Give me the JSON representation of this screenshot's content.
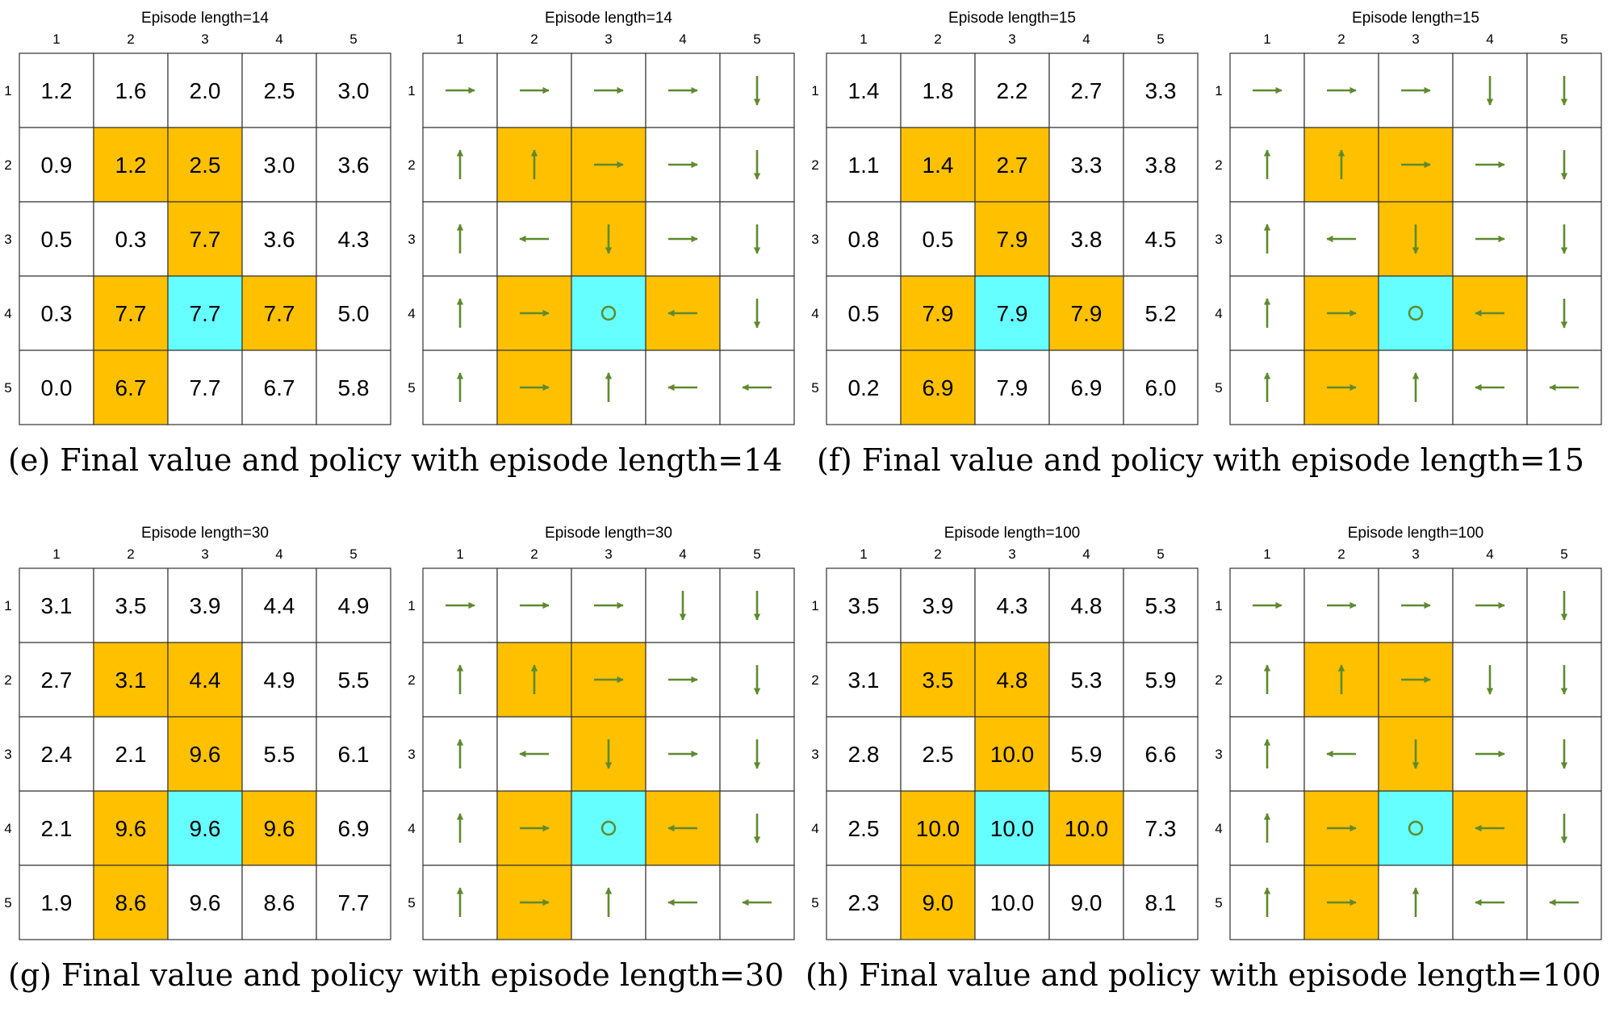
{
  "figures": [
    {
      "caption": "(e) Final value and policy with episode length=14",
      "value_grid": {
        "title": "Episode length=14",
        "col_labels": [
          "1",
          "2",
          "3",
          "4",
          "5"
        ],
        "row_labels": [
          "1",
          "2",
          "3",
          "4",
          "5"
        ],
        "values": [
          [
            "1.2",
            "1.6",
            "2.0",
            "2.5",
            "3.0"
          ],
          [
            "0.9",
            "1.2",
            "2.5",
            "3.0",
            "3.6"
          ],
          [
            "0.5",
            "0.3",
            "7.7",
            "3.6",
            "4.3"
          ],
          [
            "0.3",
            "7.7",
            "7.7",
            "7.7",
            "5.0"
          ],
          [
            "0.0",
            "6.7",
            "7.7",
            "6.7",
            "5.8"
          ]
        ]
      },
      "policy_grid": {
        "title": "Episode length=14",
        "col_labels": [
          "1",
          "2",
          "3",
          "4",
          "5"
        ],
        "row_labels": [
          "1",
          "2",
          "3",
          "4",
          "5"
        ],
        "actions": [
          [
            "right",
            "right",
            "right",
            "right",
            "down"
          ],
          [
            "up",
            "up",
            "right",
            "right",
            "down"
          ],
          [
            "up",
            "left",
            "down",
            "right",
            "down"
          ],
          [
            "up",
            "right",
            "stay",
            "left",
            "down"
          ],
          [
            "up",
            "right",
            "up",
            "left",
            "left"
          ]
        ]
      }
    },
    {
      "caption": "(f) Final value and policy with episode length=15",
      "value_grid": {
        "title": "Episode length=15",
        "col_labels": [
          "1",
          "2",
          "3",
          "4",
          "5"
        ],
        "row_labels": [
          "1",
          "2",
          "3",
          "4",
          "5"
        ],
        "values": [
          [
            "1.4",
            "1.8",
            "2.2",
            "2.7",
            "3.3"
          ],
          [
            "1.1",
            "1.4",
            "2.7",
            "3.3",
            "3.8"
          ],
          [
            "0.8",
            "0.5",
            "7.9",
            "3.8",
            "4.5"
          ],
          [
            "0.5",
            "7.9",
            "7.9",
            "7.9",
            "5.2"
          ],
          [
            "0.2",
            "6.9",
            "7.9",
            "6.9",
            "6.0"
          ]
        ]
      },
      "policy_grid": {
        "title": "Episode length=15",
        "col_labels": [
          "1",
          "2",
          "3",
          "4",
          "5"
        ],
        "row_labels": [
          "1",
          "2",
          "3",
          "4",
          "5"
        ],
        "actions": [
          [
            "right",
            "right",
            "right",
            "down",
            "down"
          ],
          [
            "up",
            "up",
            "right",
            "right",
            "down"
          ],
          [
            "up",
            "left",
            "down",
            "right",
            "down"
          ],
          [
            "up",
            "right",
            "stay",
            "left",
            "down"
          ],
          [
            "up",
            "right",
            "up",
            "left",
            "left"
          ]
        ]
      }
    },
    {
      "caption": "(g) Final value and policy with episode length=30",
      "value_grid": {
        "title": "Episode length=30",
        "col_labels": [
          "1",
          "2",
          "3",
          "4",
          "5"
        ],
        "row_labels": [
          "1",
          "2",
          "3",
          "4",
          "5"
        ],
        "values": [
          [
            "3.1",
            "3.5",
            "3.9",
            "4.4",
            "4.9"
          ],
          [
            "2.7",
            "3.1",
            "4.4",
            "4.9",
            "5.5"
          ],
          [
            "2.4",
            "2.1",
            "9.6",
            "5.5",
            "6.1"
          ],
          [
            "2.1",
            "9.6",
            "9.6",
            "9.6",
            "6.9"
          ],
          [
            "1.9",
            "8.6",
            "9.6",
            "8.6",
            "7.7"
          ]
        ]
      },
      "policy_grid": {
        "title": "Episode length=30",
        "col_labels": [
          "1",
          "2",
          "3",
          "4",
          "5"
        ],
        "row_labels": [
          "1",
          "2",
          "3",
          "4",
          "5"
        ],
        "actions": [
          [
            "right",
            "right",
            "right",
            "down",
            "down"
          ],
          [
            "up",
            "up",
            "right",
            "right",
            "down"
          ],
          [
            "up",
            "left",
            "down",
            "right",
            "down"
          ],
          [
            "up",
            "right",
            "stay",
            "left",
            "down"
          ],
          [
            "up",
            "right",
            "up",
            "left",
            "left"
          ]
        ]
      }
    },
    {
      "caption": "(h) Final value and policy with episode length=100",
      "value_grid": {
        "title": "Episode length=100",
        "col_labels": [
          "1",
          "2",
          "3",
          "4",
          "5"
        ],
        "row_labels": [
          "1",
          "2",
          "3",
          "4",
          "5"
        ],
        "values": [
          [
            "3.5",
            "3.9",
            "4.3",
            "4.8",
            "5.3"
          ],
          [
            "3.1",
            "3.5",
            "4.8",
            "5.3",
            "5.9"
          ],
          [
            "2.8",
            "2.5",
            "10.0",
            "5.9",
            "6.6"
          ],
          [
            "2.5",
            "10.0",
            "10.0",
            "10.0",
            "7.3"
          ],
          [
            "2.3",
            "9.0",
            "10.0",
            "9.0",
            "8.1"
          ]
        ]
      },
      "policy_grid": {
        "title": "Episode length=100",
        "col_labels": [
          "1",
          "2",
          "3",
          "4",
          "5"
        ],
        "row_labels": [
          "1",
          "2",
          "3",
          "4",
          "5"
        ],
        "actions": [
          [
            "right",
            "right",
            "right",
            "right",
            "down"
          ],
          [
            "up",
            "up",
            "right",
            "down",
            "down"
          ],
          [
            "up",
            "left",
            "down",
            "right",
            "down"
          ],
          [
            "up",
            "right",
            "stay",
            "left",
            "down"
          ],
          [
            "up",
            "right",
            "up",
            "left",
            "left"
          ]
        ]
      }
    }
  ],
  "cell_types": [
    [
      "normal",
      "normal",
      "normal",
      "normal",
      "normal"
    ],
    [
      "normal",
      "forbidden",
      "forbidden",
      "normal",
      "normal"
    ],
    [
      "normal",
      "normal",
      "forbidden",
      "normal",
      "normal"
    ],
    [
      "normal",
      "forbidden",
      "target",
      "forbidden",
      "normal"
    ],
    [
      "normal",
      "forbidden",
      "normal",
      "normal",
      "normal"
    ]
  ],
  "colors": {
    "forbidden": "#FFC000",
    "target": "#66FFFF",
    "normal": "#FFFFFF",
    "arrow": "#5E8A2E",
    "gridline": "#333333"
  }
}
